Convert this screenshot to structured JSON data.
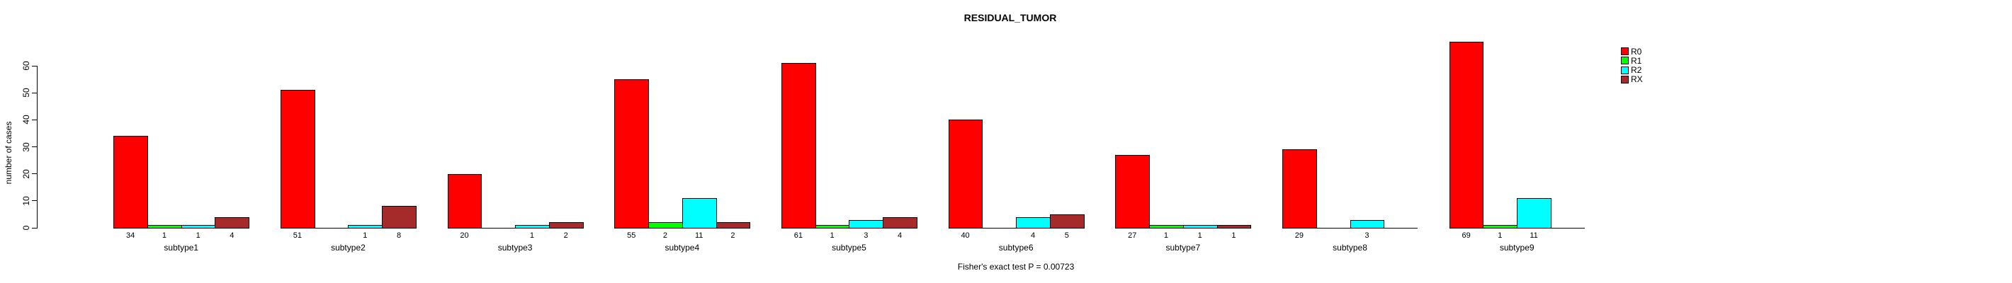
{
  "chart_data": {
    "type": "bar",
    "title": "RESIDUAL_TUMOR",
    "ylabel": "number of cases",
    "xlabel": "",
    "categories": [
      "subtype1",
      "subtype2",
      "subtype3",
      "subtype4",
      "subtype5",
      "subtype6",
      "subtype7",
      "subtype8",
      "subtype9"
    ],
    "series": [
      {
        "name": "R0",
        "color": "#FF0000",
        "values": [
          34,
          51,
          20,
          55,
          61,
          40,
          27,
          29,
          69
        ]
      },
      {
        "name": "R1",
        "color": "#00FF00",
        "values": [
          1,
          0,
          0,
          2,
          1,
          0,
          1,
          0,
          1
        ]
      },
      {
        "name": "R2",
        "color": "#00FFFF",
        "values": [
          1,
          1,
          1,
          11,
          3,
          4,
          1,
          3,
          11
        ]
      },
      {
        "name": "RX",
        "color": "#A52A2A",
        "values": [
          4,
          8,
          2,
          2,
          4,
          5,
          1,
          0,
          0
        ]
      }
    ],
    "ylim": [
      0,
      60
    ],
    "yticks": [
      0,
      10,
      20,
      30,
      40,
      50,
      60
    ],
    "grid": false,
    "legend_position": "right",
    "bar_value_labels_shown": true,
    "zero_value_labels_hidden": true,
    "annotation": "Fisher's exact test P = 0.00723"
  },
  "colors": {
    "background": "#FFFFFF",
    "axis": "#000000",
    "text": "#000000",
    "r0": "#FF0000",
    "r1": "#00FF00",
    "r2": "#00FFFF",
    "rx": "#A52A2A"
  }
}
